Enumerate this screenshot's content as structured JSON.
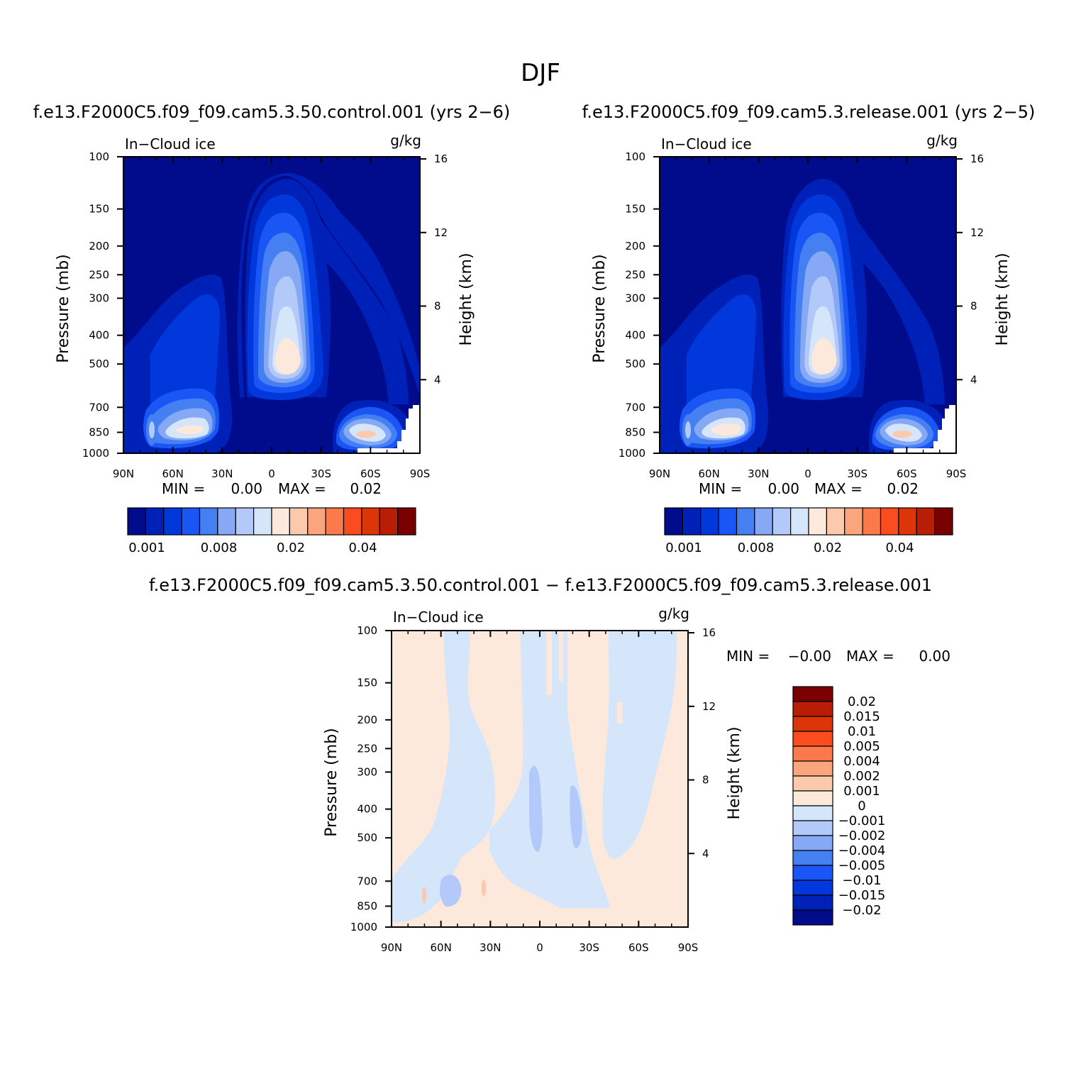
{
  "figure_title": "DJF",
  "chart_data": [
    {
      "type": "heatmap",
      "subtitle": "f.e13.F2000C5.f09_f09.cam5.3.50.control.001 (yrs 2-6)",
      "variable_label": "In-Cloud ice",
      "units_label": "g/kg",
      "ylabel": "Pressure (mb)",
      "y2label": "Height (km)",
      "x_ticks": [
        "90N",
        "60N",
        "30N",
        "0",
        "30S",
        "60S",
        "90S"
      ],
      "y_ticks": [
        "100",
        "150",
        "200",
        "250",
        "300",
        "400",
        "500",
        "700",
        "850",
        "1000"
      ],
      "y2_ticks": [
        "16",
        "12",
        "8",
        "4"
      ],
      "min_text": "MIN =",
      "min_value": "0.00",
      "max_text": "MAX =",
      "max_value": "0.02",
      "colorbar_labels": [
        "0.001",
        "0.008",
        "0.02",
        "0.04"
      ],
      "colors": [
        "#000c8c",
        "#0021b8",
        "#0038dc",
        "#1a55f5",
        "#4580f2",
        "#86a8f5",
        "#b3c9fa",
        "#d6e6fa",
        "#fde9dc",
        "#fcc9ad",
        "#fba57f",
        "#fb7a4b",
        "#fa4c1f",
        "#dc3508",
        "#b81e05",
        "#7a0000"
      ]
    },
    {
      "type": "heatmap",
      "subtitle": "f.e13.F2000C5.f09_f09.cam5.3.release.001 (yrs 2-5)",
      "variable_label": "In-Cloud ice",
      "units_label": "g/kg",
      "ylabel": "Pressure (mb)",
      "y2label": "Height (km)",
      "x_ticks": [
        "90N",
        "60N",
        "30N",
        "0",
        "30S",
        "60S",
        "90S"
      ],
      "y_ticks": [
        "100",
        "150",
        "200",
        "250",
        "300",
        "400",
        "500",
        "700",
        "850",
        "1000"
      ],
      "y2_ticks": [
        "16",
        "12",
        "8",
        "4"
      ],
      "min_text": "MIN =",
      "min_value": "0.00",
      "max_text": "MAX =",
      "max_value": "0.02",
      "colorbar_labels": [
        "0.001",
        "0.008",
        "0.02",
        "0.04"
      ]
    },
    {
      "type": "heatmap",
      "subtitle": "f.e13.F2000C5.f09_f09.cam5.3.50.control.001 - f.e13.F2000C5.f09_f09.cam5.3.release.001",
      "variable_label": "In-Cloud ice",
      "units_label": "g/kg",
      "ylabel": "Pressure (mb)",
      "y2label": "Height (km)",
      "x_ticks": [
        "90N",
        "60N",
        "30N",
        "0",
        "30S",
        "60S",
        "90S"
      ],
      "y_ticks": [
        "100",
        "150",
        "200",
        "250",
        "300",
        "400",
        "500",
        "700",
        "850",
        "1000"
      ],
      "y2_ticks": [
        "16",
        "12",
        "8",
        "4"
      ],
      "min_text": "MIN =",
      "min_value": "-0.00",
      "max_text": "MAX =",
      "max_value": "0.00",
      "colorbar_labels": [
        "0.02",
        "0.015",
        "0.01",
        "0.005",
        "0.004",
        "0.002",
        "0.001",
        "0",
        "-0.001",
        "-0.002",
        "-0.004",
        "-0.005",
        "-0.01",
        "-0.015",
        "-0.02"
      ],
      "colors": [
        "#7a0000",
        "#b81e05",
        "#dc3508",
        "#fa4c1f",
        "#fb7a4b",
        "#fba57f",
        "#fcc9ad",
        "#fde9dc",
        "#d6e6fa",
        "#b3c9fa",
        "#86a8f5",
        "#4580f2",
        "#1a55f5",
        "#0038dc",
        "#0021b8",
        "#000c8c"
      ]
    }
  ]
}
